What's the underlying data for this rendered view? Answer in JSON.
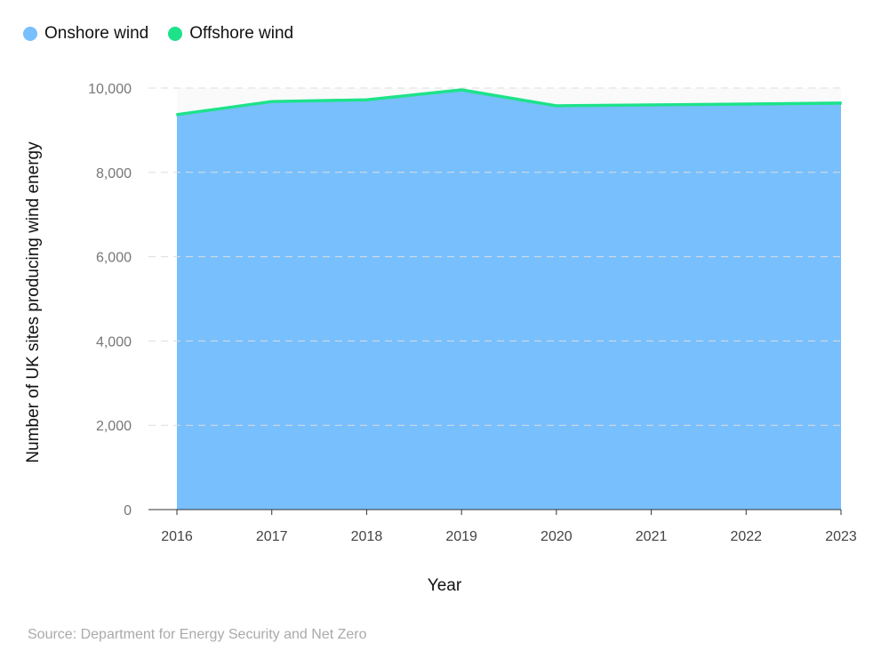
{
  "chart_data": {
    "type": "area",
    "stacked": true,
    "categories": [
      "2016",
      "2017",
      "2018",
      "2019",
      "2020",
      "2021",
      "2022",
      "2023"
    ],
    "series": [
      {
        "name": "Onshore wind",
        "color": "#78bffd",
        "values": [
          9350,
          9660,
          9700,
          9935,
          9560,
          9580,
          9600,
          9620
        ]
      },
      {
        "name": "Offshore wind",
        "color": "#1de28a",
        "values": [
          40,
          40,
          42,
          43,
          40,
          40,
          42,
          45
        ]
      }
    ],
    "xlabel": "Year",
    "ylabel": "Number of UK sites producing wind energy",
    "ylim": [
      0,
      10000
    ],
    "yticks": [
      0,
      2000,
      4000,
      6000,
      8000,
      10000
    ],
    "ytick_labels": [
      "0",
      "2,000",
      "4,000",
      "6,000",
      "8,000",
      "10,000"
    ],
    "grid": true,
    "legend_position": "top-left"
  },
  "source": "Source: Department for Energy Security and Net Zero"
}
